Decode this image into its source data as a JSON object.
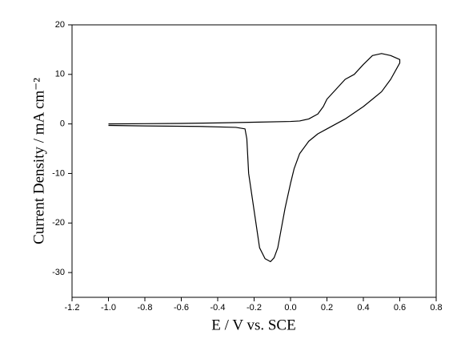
{
  "chart_data": {
    "type": "line",
    "xlabel": "E / V vs. SCE",
    "ylabel": "Current Density / mA cm⁻²",
    "color": "#000000",
    "x": [
      -1.0,
      -0.8,
      -0.6,
      -0.4,
      -0.2,
      0.0,
      0.05,
      0.1,
      0.15,
      0.18,
      0.2,
      0.25,
      0.3,
      0.35,
      0.4,
      0.45,
      0.5,
      0.55,
      0.6,
      0.6,
      0.55,
      0.5,
      0.45,
      0.4,
      0.3,
      0.2,
      0.15,
      0.1,
      0.05,
      0.02,
      0.0,
      -0.03,
      -0.05,
      -0.07,
      -0.09,
      -0.11,
      -0.14,
      -0.17,
      -0.19,
      -0.21,
      -0.23,
      -0.24,
      -0.25,
      -0.3,
      -0.5,
      -0.8,
      -1.0
    ],
    "values": [
      0.0,
      0.05,
      0.1,
      0.2,
      0.35,
      0.5,
      0.6,
      1.0,
      2.0,
      3.5,
      5.0,
      7.0,
      9.0,
      10.0,
      12.0,
      13.8,
      14.2,
      13.8,
      13.0,
      12.3,
      9.0,
      6.5,
      5.0,
      3.5,
      1.0,
      -1.0,
      -2.0,
      -3.5,
      -6.0,
      -9.0,
      -12.0,
      -17.0,
      -21.0,
      -25.0,
      -27.0,
      -27.8,
      -27.2,
      -25.0,
      -20.0,
      -15.0,
      -10.0,
      -3.0,
      -1.0,
      -0.7,
      -0.5,
      -0.4,
      -0.3
    ],
    "xlim": [
      -1.2,
      0.8
    ],
    "xticks": [
      -1.2,
      {
        "value": -1,
        "label": "-1.0"
      },
      -0.8,
      -0.6,
      -0.4,
      -0.2,
      {
        "value": 0,
        "label": "0.0"
      },
      0.2,
      0.4,
      0.6,
      0.8
    ],
    "ylim": [
      -35,
      20
    ],
    "yticks": [
      -30,
      -20,
      -10,
      0,
      10,
      20
    ],
    "grid": false
  }
}
